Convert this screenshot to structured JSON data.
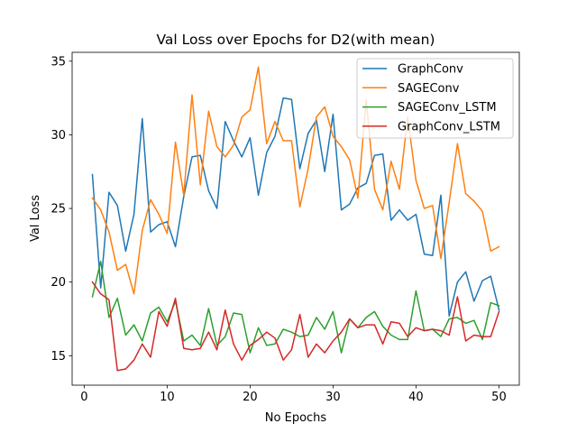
{
  "chart_data": {
    "type": "line",
    "title": "Val Loss over Epochs for D2(with mean)",
    "xlabel": "No Epochs",
    "ylabel": "Val Loss",
    "xlim": [
      -1.45,
      52.45
    ],
    "ylim": [
      13.0,
      35.6
    ],
    "xticks": [
      0,
      10,
      20,
      30,
      40,
      50
    ],
    "yticks": [
      15,
      20,
      25,
      30,
      35
    ],
    "grid": false,
    "legend_position": "upper right",
    "x": [
      1,
      2,
      3,
      4,
      5,
      6,
      7,
      8,
      9,
      10,
      11,
      12,
      13,
      14,
      15,
      16,
      17,
      18,
      19,
      20,
      21,
      22,
      23,
      24,
      25,
      26,
      27,
      28,
      29,
      30,
      31,
      32,
      33,
      34,
      35,
      36,
      37,
      38,
      39,
      40,
      41,
      42,
      43,
      44,
      45,
      46,
      47,
      48,
      49,
      50
    ],
    "series": [
      {
        "name": "GraphConv",
        "color": "#1f77b4",
        "values": [
          27.3,
          19.6,
          26.1,
          25.2,
          22.1,
          24.6,
          31.1,
          23.4,
          23.9,
          24.1,
          22.4,
          25.8,
          28.5,
          28.6,
          26.2,
          25.0,
          30.9,
          29.6,
          28.5,
          29.8,
          25.9,
          28.8,
          29.9,
          32.5,
          32.4,
          27.7,
          30.1,
          31.0,
          27.5,
          31.4,
          24.9,
          25.3,
          26.4,
          26.7,
          28.6,
          28.7,
          24.2,
          24.9,
          24.2,
          24.6,
          21.9,
          21.8,
          25.9,
          17.7,
          20.0,
          20.7,
          18.7,
          20.1,
          20.4,
          18.1
        ]
      },
      {
        "name": "SAGEConv",
        "color": "#ff7f0e",
        "values": [
          25.7,
          24.9,
          23.4,
          20.8,
          21.2,
          19.2,
          23.5,
          25.6,
          24.6,
          23.3,
          29.5,
          25.9,
          32.7,
          26.6,
          31.6,
          29.2,
          28.5,
          29.3,
          31.2,
          31.7,
          34.6,
          29.4,
          30.9,
          29.6,
          29.6,
          25.1,
          27.7,
          31.2,
          31.9,
          29.9,
          29.2,
          28.3,
          25.7,
          32.4,
          26.3,
          24.9,
          28.2,
          26.3,
          31.2,
          26.9,
          25.0,
          25.2,
          21.6,
          25.4,
          29.4,
          26.0,
          25.5,
          24.8,
          22.1,
          22.4
        ]
      },
      {
        "name": "SAGEConv_LSTM",
        "color": "#2ca02c",
        "values": [
          19.0,
          21.4,
          17.6,
          18.9,
          16.4,
          17.1,
          16.0,
          17.9,
          18.3,
          17.3,
          18.7,
          16.0,
          16.4,
          15.7,
          18.2,
          15.7,
          16.3,
          17.9,
          17.8,
          15.2,
          16.9,
          15.7,
          15.8,
          16.8,
          16.6,
          16.3,
          16.4,
          17.6,
          16.8,
          18.0,
          15.2,
          17.5,
          16.9,
          17.6,
          18.0,
          17.0,
          16.4,
          16.1,
          16.1,
          19.4,
          16.7,
          16.8,
          16.3,
          17.5,
          17.6,
          17.2,
          17.4,
          16.1,
          18.6,
          18.4
        ]
      },
      {
        "name": "GraphConv_LSTM",
        "color": "#d62728",
        "values": [
          20.0,
          19.2,
          18.8,
          14.0,
          14.1,
          14.7,
          15.8,
          14.9,
          18.0,
          17.0,
          18.9,
          15.5,
          15.4,
          15.5,
          16.6,
          15.4,
          18.1,
          15.8,
          14.7,
          15.7,
          16.1,
          16.6,
          16.2,
          14.7,
          15.4,
          17.8,
          14.9,
          15.8,
          15.2,
          16.0,
          16.6,
          17.5,
          16.9,
          17.1,
          17.1,
          15.8,
          17.3,
          17.2,
          16.3,
          16.9,
          16.7,
          16.8,
          16.7,
          16.4,
          19.0,
          16.0,
          16.4,
          16.3,
          16.3,
          18.0
        ]
      }
    ]
  }
}
